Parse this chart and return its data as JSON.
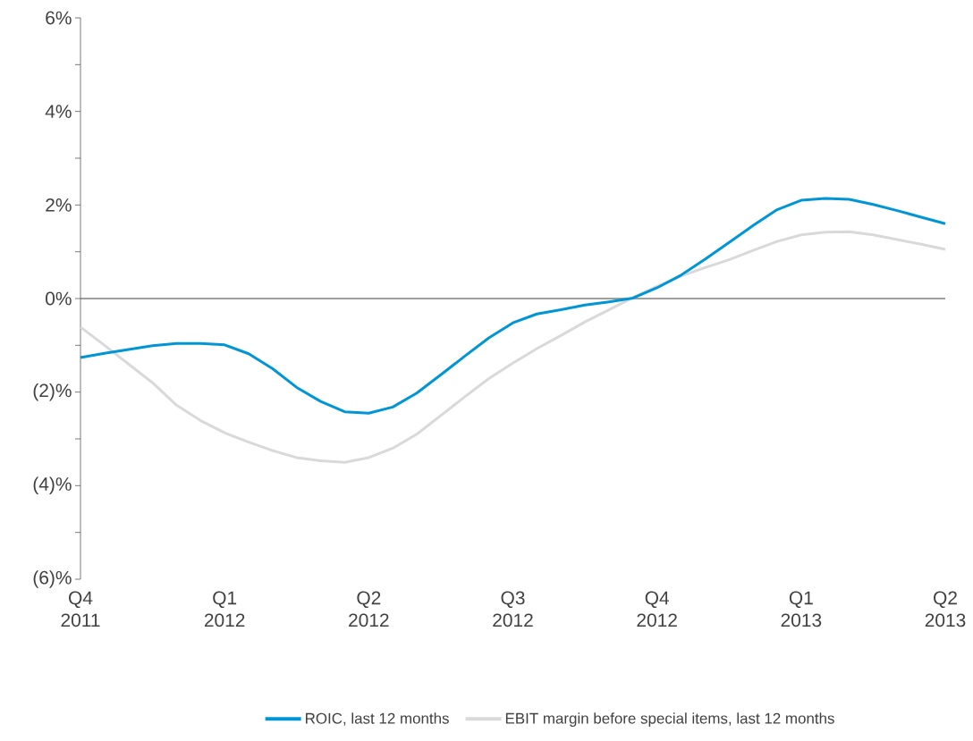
{
  "chart_data": {
    "type": "line",
    "ylim": [
      -6,
      6
    ],
    "categories": [
      "Q4 2011",
      null,
      null,
      null,
      null,
      null,
      "Q1 2012",
      null,
      null,
      null,
      null,
      null,
      "Q2 2012",
      null,
      null,
      null,
      null,
      null,
      "Q3 2012",
      null,
      null,
      null,
      null,
      null,
      "Q4 2012",
      null,
      null,
      null,
      null,
      null,
      "Q1 2013",
      null,
      null,
      null,
      null,
      null,
      "Q2 2013"
    ],
    "yticks": [
      {
        "value": 6,
        "label": "6%"
      },
      {
        "value": 5,
        "label": null
      },
      {
        "value": 4,
        "label": "4%"
      },
      {
        "value": 3,
        "label": null
      },
      {
        "value": 2,
        "label": "2%"
      },
      {
        "value": 1,
        "label": null
      },
      {
        "value": 0,
        "label": "0%"
      },
      {
        "value": -1,
        "label": null
      },
      {
        "value": -2,
        "label": "(2)%"
      },
      {
        "value": -3,
        "label": null
      },
      {
        "value": -4,
        "label": "(4)%"
      },
      {
        "value": -5,
        "label": null
      },
      {
        "value": -6,
        "label": "(6)%"
      }
    ],
    "ref_lines": [
      {
        "axis": "y",
        "value": 0,
        "color": "#404040"
      }
    ],
    "legend": "bottom",
    "series": [
      {
        "name": "ROIC, last 12 months",
        "color": "#0096d6",
        "values": [
          -1.26,
          -1.17,
          -1.09,
          -1.01,
          -0.96,
          -0.96,
          -0.99,
          -1.18,
          -1.5,
          -1.9,
          -2.2,
          -2.42,
          -2.45,
          -2.32,
          -2.02,
          -1.63,
          -1.23,
          -0.84,
          -0.52,
          -0.33,
          -0.24,
          -0.14,
          -0.07,
          0.01,
          0.23,
          0.5,
          0.84,
          1.2,
          1.56,
          1.9,
          2.1,
          2.14,
          2.12,
          2.01,
          1.88,
          1.74,
          1.6
        ]
      },
      {
        "name": "EBIT margin before special items, last 12 months",
        "color": "#d9d9d9",
        "values": [
          -0.61,
          -1.0,
          -1.4,
          -1.8,
          -2.28,
          -2.61,
          -2.87,
          -3.07,
          -3.25,
          -3.4,
          -3.47,
          -3.5,
          -3.4,
          -3.2,
          -2.9,
          -2.5,
          -2.1,
          -1.71,
          -1.38,
          -1.07,
          -0.79,
          -0.5,
          -0.24,
          0.02,
          0.26,
          0.48,
          0.66,
          0.83,
          1.03,
          1.22,
          1.36,
          1.42,
          1.43,
          1.36,
          1.26,
          1.16,
          1.05
        ]
      }
    ]
  }
}
